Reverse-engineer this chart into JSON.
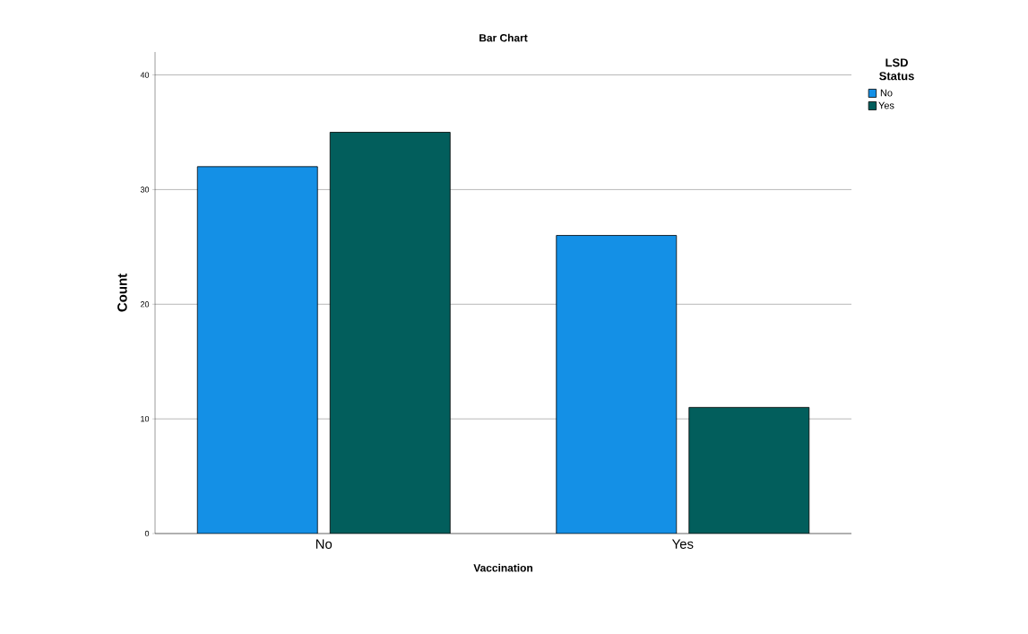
{
  "chart_data": {
    "type": "bar",
    "title": "Bar Chart",
    "xlabel": "Vaccination",
    "ylabel": "Count",
    "legend_title": "LSD Status",
    "categories": [
      "No",
      "Yes"
    ],
    "series": [
      {
        "name": "No",
        "color": "#1490e6",
        "values": [
          32,
          26
        ]
      },
      {
        "name": "Yes",
        "color": "#025e5c",
        "values": [
          35,
          11
        ]
      }
    ],
    "ylim": [
      0,
      42
    ],
    "yticks": [
      0,
      10,
      20,
      30,
      40
    ],
    "grid": "y",
    "legend": "top right"
  }
}
